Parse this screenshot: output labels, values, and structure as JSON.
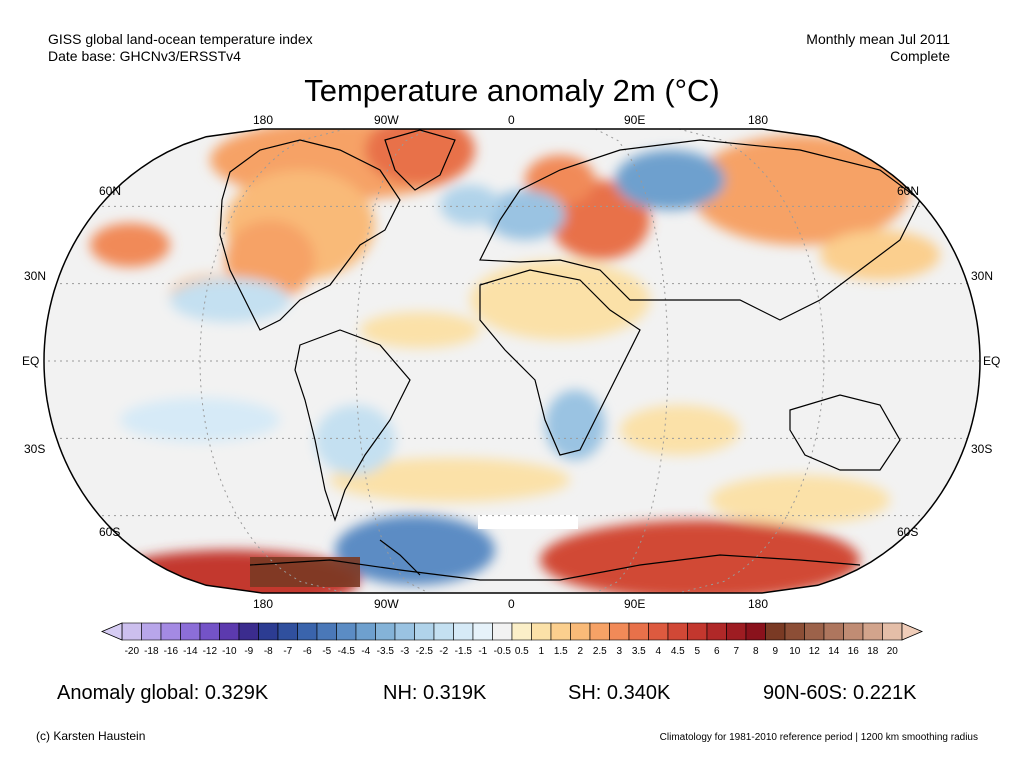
{
  "header": {
    "dataset_line1": "GISS global land-ocean temperature index",
    "dataset_line2": "Date base: GHCNv3/ERSSTv4",
    "period_line1": "Monthly mean Jul 2011",
    "period_line2": "Complete"
  },
  "title": "Temperature anomaly 2m (°C)",
  "map": {
    "lon_labels_top": [
      "180",
      "90W",
      "0",
      "90E",
      "180"
    ],
    "lon_labels_bottom": [
      "180",
      "90W",
      "0",
      "90E",
      "180"
    ],
    "lat_labels_left": [
      "60N",
      "30N",
      "EQ",
      "30S",
      "60S"
    ],
    "lat_labels_right": [
      "60N",
      "30N",
      "EQ",
      "30S",
      "60S"
    ],
    "colors": {
      "ocean_background": "#f2f2f2",
      "frame": "#000000",
      "graticule": "#9a9a9a"
    }
  },
  "colorbar": {
    "tick_labels": [
      "-20",
      "-18",
      "-16",
      "-14",
      "-12",
      "-10",
      "-9",
      "-8",
      "-7",
      "-6",
      "-5",
      "-4.5",
      "-4",
      "-3.5",
      "-3",
      "-2.5",
      "-2",
      "-1.5",
      "-1",
      "-0.5",
      "0.5",
      "1",
      "1.5",
      "2",
      "2.5",
      "3",
      "3.5",
      "4",
      "4.5",
      "5",
      "6",
      "7",
      "8",
      "9",
      "10",
      "12",
      "14",
      "16",
      "18",
      "20"
    ],
    "colors": [
      "#ccbfee",
      "#b8a6ea",
      "#a48ae3",
      "#8c6ed8",
      "#7453c7",
      "#5c3aae",
      "#3b2c8e",
      "#2c3c92",
      "#30509e",
      "#3a64ac",
      "#4a78b8",
      "#5b8cc4",
      "#6ea0ce",
      "#84b3d8",
      "#9ac3e2",
      "#b0d3ea",
      "#c4e0f1",
      "#d6eaf7",
      "#e6f2fa",
      "#f2f2f2",
      "#fbefc8",
      "#fbe1a8",
      "#fbcf8e",
      "#f9ba78",
      "#f6a266",
      "#f18a58",
      "#e8714a",
      "#dd5a3f",
      "#d14836",
      "#c3372e",
      "#b02828",
      "#9e1c22",
      "#8a121c",
      "#7a3a24",
      "#8c4e36",
      "#9c624a",
      "#ae765e",
      "#c08c74",
      "#d2a48c",
      "#e4bea8"
    ],
    "end_low_color": "#d6ccf3",
    "end_high_color": "#f0cdb9"
  },
  "anomalies": {
    "global": "Anomaly global: 0.329K",
    "nh": "NH: 0.319K",
    "sh": "SH: 0.340K",
    "polar": "90N-60S: 0.221K"
  },
  "footer": {
    "credit": "(c) Karsten Haustein",
    "note": "Climatology for 1981-2010 reference period | 1200 km smoothing radius"
  }
}
